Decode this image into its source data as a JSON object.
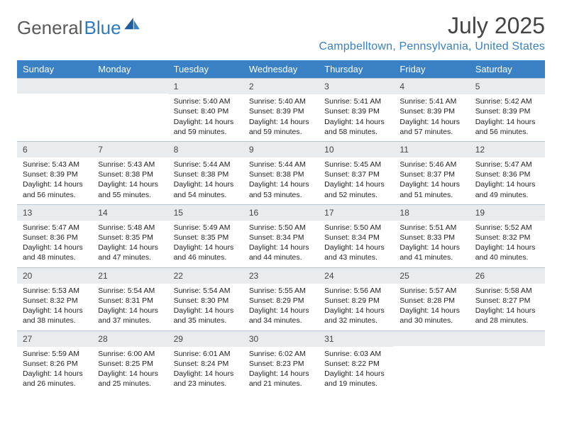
{
  "logo": {
    "text1": "General",
    "text2": "Blue"
  },
  "title": "July 2025",
  "location": "Campbelltown, Pennsylvania, United States",
  "weekdays": [
    "Sunday",
    "Monday",
    "Tuesday",
    "Wednesday",
    "Thursday",
    "Friday",
    "Saturday"
  ],
  "colors": {
    "header_bg": "#3a80c4",
    "header_fg": "#ffffff",
    "daynum_bg": "#e8ecef",
    "location_fg": "#3a80bf",
    "logo_gray": "#5a5a5a",
    "logo_blue": "#2f7bbf"
  },
  "weeks": [
    [
      {
        "num": "",
        "lines": []
      },
      {
        "num": "",
        "lines": []
      },
      {
        "num": "1",
        "lines": [
          "Sunrise: 5:40 AM",
          "Sunset: 8:40 PM",
          "Daylight: 14 hours",
          "and 59 minutes."
        ]
      },
      {
        "num": "2",
        "lines": [
          "Sunrise: 5:40 AM",
          "Sunset: 8:39 PM",
          "Daylight: 14 hours",
          "and 59 minutes."
        ]
      },
      {
        "num": "3",
        "lines": [
          "Sunrise: 5:41 AM",
          "Sunset: 8:39 PM",
          "Daylight: 14 hours",
          "and 58 minutes."
        ]
      },
      {
        "num": "4",
        "lines": [
          "Sunrise: 5:41 AM",
          "Sunset: 8:39 PM",
          "Daylight: 14 hours",
          "and 57 minutes."
        ]
      },
      {
        "num": "5",
        "lines": [
          "Sunrise: 5:42 AM",
          "Sunset: 8:39 PM",
          "Daylight: 14 hours",
          "and 56 minutes."
        ]
      }
    ],
    [
      {
        "num": "6",
        "lines": [
          "Sunrise: 5:43 AM",
          "Sunset: 8:39 PM",
          "Daylight: 14 hours",
          "and 56 minutes."
        ]
      },
      {
        "num": "7",
        "lines": [
          "Sunrise: 5:43 AM",
          "Sunset: 8:38 PM",
          "Daylight: 14 hours",
          "and 55 minutes."
        ]
      },
      {
        "num": "8",
        "lines": [
          "Sunrise: 5:44 AM",
          "Sunset: 8:38 PM",
          "Daylight: 14 hours",
          "and 54 minutes."
        ]
      },
      {
        "num": "9",
        "lines": [
          "Sunrise: 5:44 AM",
          "Sunset: 8:38 PM",
          "Daylight: 14 hours",
          "and 53 minutes."
        ]
      },
      {
        "num": "10",
        "lines": [
          "Sunrise: 5:45 AM",
          "Sunset: 8:37 PM",
          "Daylight: 14 hours",
          "and 52 minutes."
        ]
      },
      {
        "num": "11",
        "lines": [
          "Sunrise: 5:46 AM",
          "Sunset: 8:37 PM",
          "Daylight: 14 hours",
          "and 51 minutes."
        ]
      },
      {
        "num": "12",
        "lines": [
          "Sunrise: 5:47 AM",
          "Sunset: 8:36 PM",
          "Daylight: 14 hours",
          "and 49 minutes."
        ]
      }
    ],
    [
      {
        "num": "13",
        "lines": [
          "Sunrise: 5:47 AM",
          "Sunset: 8:36 PM",
          "Daylight: 14 hours",
          "and 48 minutes."
        ]
      },
      {
        "num": "14",
        "lines": [
          "Sunrise: 5:48 AM",
          "Sunset: 8:35 PM",
          "Daylight: 14 hours",
          "and 47 minutes."
        ]
      },
      {
        "num": "15",
        "lines": [
          "Sunrise: 5:49 AM",
          "Sunset: 8:35 PM",
          "Daylight: 14 hours",
          "and 46 minutes."
        ]
      },
      {
        "num": "16",
        "lines": [
          "Sunrise: 5:50 AM",
          "Sunset: 8:34 PM",
          "Daylight: 14 hours",
          "and 44 minutes."
        ]
      },
      {
        "num": "17",
        "lines": [
          "Sunrise: 5:50 AM",
          "Sunset: 8:34 PM",
          "Daylight: 14 hours",
          "and 43 minutes."
        ]
      },
      {
        "num": "18",
        "lines": [
          "Sunrise: 5:51 AM",
          "Sunset: 8:33 PM",
          "Daylight: 14 hours",
          "and 41 minutes."
        ]
      },
      {
        "num": "19",
        "lines": [
          "Sunrise: 5:52 AM",
          "Sunset: 8:32 PM",
          "Daylight: 14 hours",
          "and 40 minutes."
        ]
      }
    ],
    [
      {
        "num": "20",
        "lines": [
          "Sunrise: 5:53 AM",
          "Sunset: 8:32 PM",
          "Daylight: 14 hours",
          "and 38 minutes."
        ]
      },
      {
        "num": "21",
        "lines": [
          "Sunrise: 5:54 AM",
          "Sunset: 8:31 PM",
          "Daylight: 14 hours",
          "and 37 minutes."
        ]
      },
      {
        "num": "22",
        "lines": [
          "Sunrise: 5:54 AM",
          "Sunset: 8:30 PM",
          "Daylight: 14 hours",
          "and 35 minutes."
        ]
      },
      {
        "num": "23",
        "lines": [
          "Sunrise: 5:55 AM",
          "Sunset: 8:29 PM",
          "Daylight: 14 hours",
          "and 34 minutes."
        ]
      },
      {
        "num": "24",
        "lines": [
          "Sunrise: 5:56 AM",
          "Sunset: 8:29 PM",
          "Daylight: 14 hours",
          "and 32 minutes."
        ]
      },
      {
        "num": "25",
        "lines": [
          "Sunrise: 5:57 AM",
          "Sunset: 8:28 PM",
          "Daylight: 14 hours",
          "and 30 minutes."
        ]
      },
      {
        "num": "26",
        "lines": [
          "Sunrise: 5:58 AM",
          "Sunset: 8:27 PM",
          "Daylight: 14 hours",
          "and 28 minutes."
        ]
      }
    ],
    [
      {
        "num": "27",
        "lines": [
          "Sunrise: 5:59 AM",
          "Sunset: 8:26 PM",
          "Daylight: 14 hours",
          "and 26 minutes."
        ]
      },
      {
        "num": "28",
        "lines": [
          "Sunrise: 6:00 AM",
          "Sunset: 8:25 PM",
          "Daylight: 14 hours",
          "and 25 minutes."
        ]
      },
      {
        "num": "29",
        "lines": [
          "Sunrise: 6:01 AM",
          "Sunset: 8:24 PM",
          "Daylight: 14 hours",
          "and 23 minutes."
        ]
      },
      {
        "num": "30",
        "lines": [
          "Sunrise: 6:02 AM",
          "Sunset: 8:23 PM",
          "Daylight: 14 hours",
          "and 21 minutes."
        ]
      },
      {
        "num": "31",
        "lines": [
          "Sunrise: 6:03 AM",
          "Sunset: 8:22 PM",
          "Daylight: 14 hours",
          "and 19 minutes."
        ]
      },
      {
        "num": "",
        "lines": []
      },
      {
        "num": "",
        "lines": []
      }
    ]
  ]
}
